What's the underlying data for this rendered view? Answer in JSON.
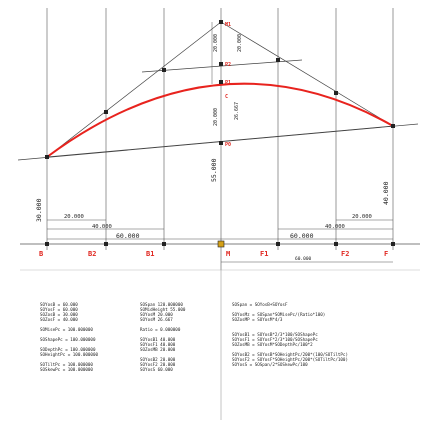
{
  "dimensions": {
    "left_height": "30.000",
    "right_height": "40.000",
    "mid_height": "55.000",
    "top_rise_left": "20.000",
    "top_rise_right": "20.000",
    "mid_rise_a": "20.000",
    "mid_rise_b": "26.667",
    "left_lower_span": "20.000",
    "left_span_40": "40.000",
    "left_span_60": "60.000",
    "right_lower_span": "20.000",
    "right_span_40": "40.000",
    "right_span_60": "60.000",
    "right_span_bottom": "60.000"
  },
  "point_labels": {
    "B": "B",
    "B2": "B2",
    "B1": "B1",
    "M": "M",
    "F1": "F1",
    "F2": "F2",
    "F": "F",
    "top": "M1",
    "mid_upper": "P2",
    "mid_a": "P1",
    "mid_b": "C",
    "mid_lower": "P0"
  },
  "colors": {
    "curve": "#e8231e",
    "line": "#444444",
    "point": "#222222",
    "label": "#e0261f",
    "origin_point": "#d4a017"
  },
  "equations": {
    "col1": [
      "SOYosB = 60.000",
      "SOYosF = 60.000",
      "SOZosB = 30.000",
      "SOZosF = 40.000",
      "",
      "SOMisePc = 100.000000",
      "",
      "SOShapePc = 100.000000",
      "",
      "SODepthPc = 100.000000",
      "SOHeightPc = 100.000000",
      "",
      "SOTiltPc = 100.000000",
      "SOSkewPc = 100.000000"
    ],
    "col2": [
      "SOSpan 120.000000",
      "SOMidHeight 55.000",
      "SOYosM 20.000",
      "SOYosM 26.667",
      "",
      "Ratio = 0.000000",
      "",
      "SOYosB1 40.000",
      "SOYosF1 40.000",
      "SOZosMB 20.000",
      "",
      "SOYosB2 20.000",
      "SOYosF2 20.000",
      "SOYosS 60.000"
    ],
    "col3": [
      "SOSpan = SOYosB+SOYosF",
      "",
      "SOYosMz = SOSpan*SOMisePc/(Ratio*100)",
      "SOZosMP = SOYosM*4/3",
      "",
      "",
      "SOYosB1 = SOYosB*2/3*100/SOShapePc",
      "SOYosF1 = SOYosF*2/3*100/SOShapePc",
      "SOZosMB = SOYosM*SODepthPc/100*2",
      "",
      "SOYosB2 = SOYosB*SOHeightPc/200*(100/SOTiltPc)",
      "SOYosF2 = SOYosF*SOHeightPc/200*(SOTiltPc/100)",
      "SOYosS = SOSpan/2*SOSkewPc/100"
    ]
  }
}
